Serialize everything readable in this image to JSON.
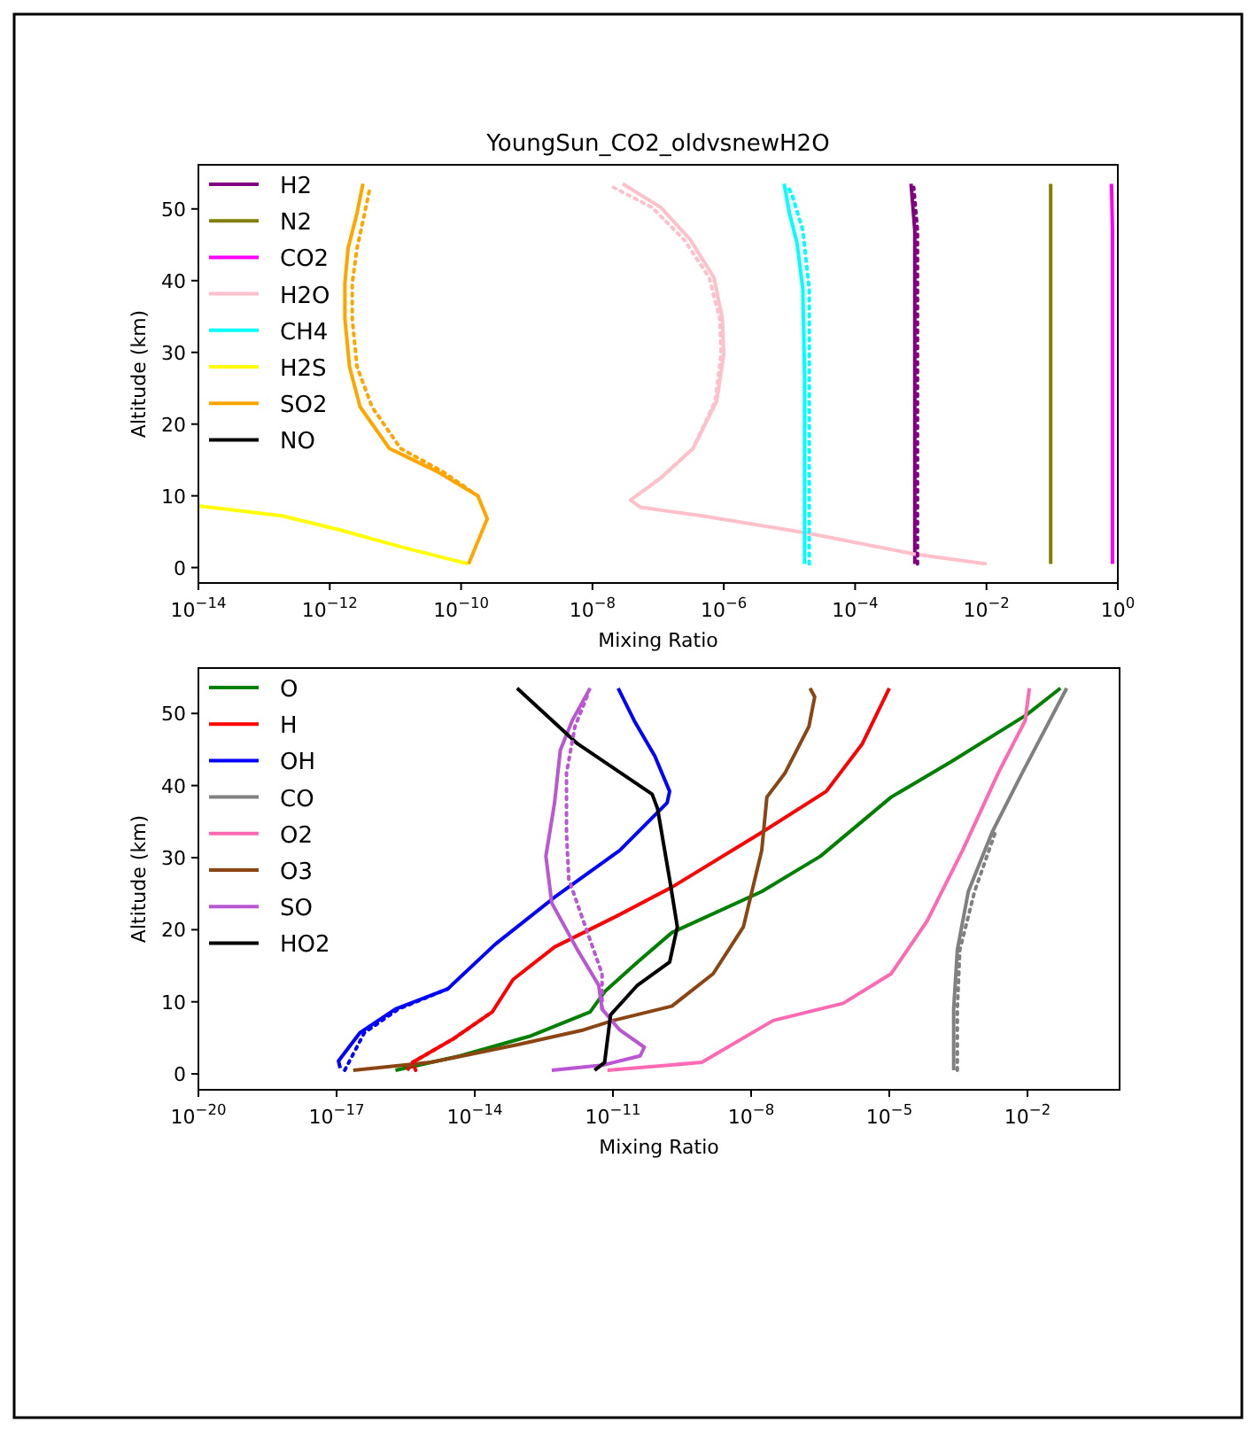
{
  "chart_data": [
    {
      "type": "line",
      "title": "YoungSun_CO2_oldvsnewH2O",
      "xlabel": "Mixing Ratio",
      "ylabel": "Altitude (km)",
      "log": "x",
      "legend": "top left",
      "line_style": "solid",
      "xlim": [
        1e-14,
        1
      ],
      "xticks": [
        {
          "value": 1e-14,
          "label": "10$^{−14}$"
        },
        {
          "value": 1e-12,
          "label": "10$^{−12}$"
        },
        {
          "value": 1e-10,
          "label": "10$^{−10}$"
        },
        {
          "value": 1e-08,
          "label": "10$^{−8}$"
        },
        {
          "value": 1e-06,
          "label": "10$^{−6}$"
        },
        {
          "value": 0.0001,
          "label": "10$^{−4}$"
        },
        {
          "value": 0.01,
          "label": "10$^{−2}$"
        },
        {
          "value": 1,
          "label": "10$^{0}$"
        }
      ],
      "ylim": [
        -2.15,
        56.15
      ],
      "yticks": [
        0,
        10,
        20,
        30,
        40,
        50
      ],
      "series": [
        {
          "name": "H2",
          "color": "#800080",
          "x": [
            0.00081,
            0.00081,
            0.00071
          ],
          "values": [
            0.5,
            47,
            53.5
          ]
        },
        {
          "name": "N2",
          "color": "#808000",
          "x": [
            0.095,
            0.095
          ],
          "values": [
            0.5,
            53.5
          ]
        },
        {
          "name": "CO2",
          "color": "#ff00ff",
          "x": [
            0.83,
            0.83,
            0.8
          ],
          "values": [
            0.5,
            47,
            53.5
          ]
        },
        {
          "name": "H2O",
          "color": "#ffc0cb",
          "x": [
            0.01,
            0.00078,
            1.9e-05,
            4.7e-07,
            5.4e-08,
            3.8e-08,
            1.1e-07,
            3.4e-07,
            7.8e-07,
            1e-06,
            9.5e-07,
            7.1e-07,
            3.1e-07,
            1.1e-07,
            2.9e-08
          ],
          "values": [
            0.5,
            1.9,
            4.8,
            7.2,
            8.4,
            9.4,
            12.5,
            16.6,
            23.2,
            29.8,
            34.7,
            40.4,
            45.7,
            50.2,
            53.5
          ]
        },
        {
          "name": "CH4",
          "color": "#00ffff",
          "x": [
            1.7e-05,
            1.7e-05,
            1.6e-05,
            1.3e-05,
            1e-05,
            8.3e-06
          ],
          "values": [
            0.5,
            26.5,
            38.8,
            45.3,
            49.4,
            53.5
          ]
        },
        {
          "name": "H2S",
          "color": "#ffff00",
          "x": [
            1e-14,
            1.9e-13,
            1.5e-12,
            1.2e-11,
            1.3e-10
          ],
          "values": [
            8.6,
            7.2,
            5.2,
            2.9,
            0.5
          ]
        },
        {
          "name": "SO2",
          "color": "#ffa500",
          "x": [
            1.3e-10,
            2.5e-10,
            1.8e-10,
            4.3e-11,
            8.1e-12,
            2.9e-12,
            2e-12,
            1.7e-12,
            1.7e-12,
            1.9e-12,
            2.6e-12,
            3.2e-12
          ],
          "values": [
            0.5,
            6.8,
            10,
            13.4,
            16.6,
            22.4,
            28,
            34.7,
            39.6,
            44.5,
            49.4,
            53.5
          ]
        },
        {
          "name": "NO",
          "color": "#000000"
        },
        {
          "color": "#800080",
          "line_style": "dotted",
          "x": [
            0.00089,
            0.00089,
            0.00078
          ],
          "values": [
            0.5,
            47,
            53
          ]
        },
        {
          "color": "#ffc0cb",
          "line_style": "dotted",
          "x": [
            3.8e-08,
            1.1e-07,
            3.4e-07,
            7.4e-07,
            9.1e-07,
            8.7e-07,
            6e-07,
            2.5e-07,
            8.1e-08,
            2.1e-08
          ],
          "values": [
            9.4,
            12.5,
            16.6,
            23.2,
            29.8,
            34.7,
            40.4,
            45.7,
            50.2,
            53
          ]
        },
        {
          "color": "#00ffff",
          "line_style": "dotted",
          "x": [
            2e-05,
            2e-05,
            1.6e-05,
            1.1e-05,
            9.3e-06
          ],
          "values": [
            0.5,
            38.8,
            47,
            51.9,
            53.3
          ]
        },
        {
          "color": "#ffa500",
          "line_style": "dotted",
          "x": [
            1.8e-10,
            5.2e-11,
            1.2e-11,
            4.4e-12,
            2.6e-12,
            2.2e-12,
            2.2e-12,
            2.6e-12,
            3.4e-12,
            4.1e-12
          ],
          "values": [
            10,
            13.4,
            16.6,
            22.4,
            28,
            34.7,
            39.6,
            44.5,
            49.4,
            53
          ]
        }
      ]
    },
    {
      "type": "line",
      "xlabel": "Mixing Ratio",
      "ylabel": "Altitude (km)",
      "log": "x",
      "legend": "top left",
      "line_style": "solid",
      "xlim": [
        1e-20,
        1
      ],
      "xticks": [
        {
          "value": 1e-20,
          "label": "10$^{−20}$"
        },
        {
          "value": 1e-17,
          "label": "10$^{−17}$"
        },
        {
          "value": 1e-14,
          "label": "10$^{−14}$"
        },
        {
          "value": 1e-11,
          "label": "10$^{−11}$"
        },
        {
          "value": 1e-08,
          "label": "10$^{−8}$"
        },
        {
          "value": 1e-05,
          "label": "10$^{−5}$"
        },
        {
          "value": 0.01,
          "label": "10$^{−2}$"
        }
      ],
      "ylim": [
        -2.2,
        56.3
      ],
      "yticks": [
        0,
        10,
        20,
        30,
        40,
        50
      ],
      "series": [
        {
          "name": "O",
          "color": "#008000",
          "x": [
            1.9e-16,
            4.8e-15,
            1.7e-13,
            3.2e-12,
            6.6e-12,
            3.4e-11,
            1.9e-10,
            1.7e-08,
            3.2e-07,
            1.1e-05,
            0.00022,
            0.0095,
            0.052
          ],
          "values": [
            0.5,
            2.5,
            5.3,
            8.6,
            11.4,
            15.5,
            19.6,
            25.3,
            30.2,
            38.4,
            43.3,
            49.8,
            53.5
          ]
        },
        {
          "name": "H",
          "color": "#ff0000",
          "x": [
            3.4e-16,
            4.5e-16,
            3.5e-15,
            2.4e-14,
            6.8e-14,
            5.4e-13,
            1.3e-11,
            1.9e-10,
            1.7e-08,
            4.3e-07,
            2.6e-06,
            1e-05
          ],
          "values": [
            0.5,
            1.6,
            4.9,
            8.6,
            13.1,
            17.6,
            22,
            25.9,
            33.5,
            39.2,
            45.8,
            53.5
          ]
        },
        {
          "name": "OH",
          "color": "#0000ff",
          "x": [
            1.2e-17,
            1.1e-17,
            3.2e-17,
            1.9e-16,
            2.6e-15,
            2.8e-14,
            5.4e-13,
            1.4e-11,
            1.5e-10,
            1.7e-10,
            8.1e-11,
            2.9e-11,
            1.3e-11
          ],
          "values": [
            0.8,
            1.8,
            5.7,
            9,
            11.8,
            18,
            24.5,
            31,
            37.6,
            39.2,
            44.1,
            49,
            53.5
          ]
        },
        {
          "name": "CO",
          "color": "#808080",
          "x": [
            0.00025,
            0.00025,
            0.0003,
            0.00052,
            0.0017,
            0.0076,
            0.071
          ],
          "values": [
            0.5,
            9,
            17.2,
            25.3,
            33.5,
            41.7,
            53.5
          ]
        },
        {
          "name": "O2",
          "color": "#ff69b4",
          "x": [
            7.6e-12,
            8.5e-10,
            3e-08,
            1e-06,
            1.1e-05,
            6.6e-05,
            0.00039,
            0.0023,
            0.0089,
            0.011
          ],
          "values": [
            0.5,
            1.6,
            7.4,
            9.8,
            13.9,
            21.2,
            31,
            41.7,
            49,
            53.5
          ]
        },
        {
          "name": "O3",
          "color": "#8b4513",
          "x": [
            2.3e-17,
            1.1e-15,
            9.1e-14,
            2.3e-12,
            1e-11,
            1.9e-10,
            1.5e-09,
            6.8e-09,
            1.7e-08,
            2.2e-08,
            5.4e-08,
            1.8e-07,
            2.4e-07,
            1.9e-07
          ],
          "values": [
            0.5,
            1.6,
            4.1,
            6.1,
            7.4,
            9.4,
            13.9,
            20.4,
            31,
            38.4,
            41.7,
            48.2,
            52.3,
            53.5
          ]
        },
        {
          "name": "SO",
          "color": "#ba55d3",
          "x": [
            4.7e-13,
            5.8e-12,
            3.9e-11,
            4.8e-11,
            1.4e-11,
            5.8e-12,
            4.9e-12,
            1.7e-12,
            4.7e-13,
            3.5e-13,
            5.4e-13,
            7.2e-13,
            1.3e-12,
            3.2e-12
          ],
          "values": [
            0.5,
            1.2,
            2.5,
            3.7,
            6.1,
            9,
            12.3,
            17.2,
            23.7,
            30.2,
            37.6,
            44.9,
            49,
            53.5
          ]
        },
        {
          "name": "HO2",
          "color": "#000000",
          "x": [
            4e-12,
            6.6e-12,
            8.9e-12,
            3.4e-11,
            1.7e-10,
            2.5e-10,
            1.7e-10,
            9.3e-11,
            7.1e-11,
            1.7e-12,
            8.3e-14
          ],
          "values": [
            0.5,
            1.6,
            8.2,
            12.3,
            15.5,
            20.4,
            27,
            36.8,
            38.8,
            45.8,
            53.5
          ]
        },
        {
          "color": "#ff0000",
          "line_style": "dotted",
          "x": [
            5.2e-16,
            4.5e-16,
            3.5e-15,
            2.4e-14
          ],
          "values": [
            0.5,
            1.6,
            4.9,
            8.6
          ]
        },
        {
          "color": "#0000ff",
          "line_style": "dotted",
          "x": [
            1.5e-17,
            4e-17,
            2.2e-16,
            2.6e-15
          ],
          "values": [
            0.5,
            5.7,
            9,
            11.8
          ]
        },
        {
          "color": "#808080",
          "line_style": "dotted",
          "x": [
            0.0003,
            0.0003,
            0.00034,
            0.00071,
            0.002
          ],
          "values": [
            0.5,
            9,
            17.2,
            25.3,
            33.5
          ]
        },
        {
          "color": "#ba55d3",
          "line_style": "dotted",
          "x": [
            5.8e-12,
            5.8e-12,
            2.8e-12,
            1.1e-12,
            9.8e-13,
            9.8e-13,
            1.5e-12,
            3e-12
          ],
          "values": [
            9,
            13.9,
            19.6,
            27,
            33.5,
            41.7,
            48.2,
            53
          ]
        }
      ]
    }
  ]
}
